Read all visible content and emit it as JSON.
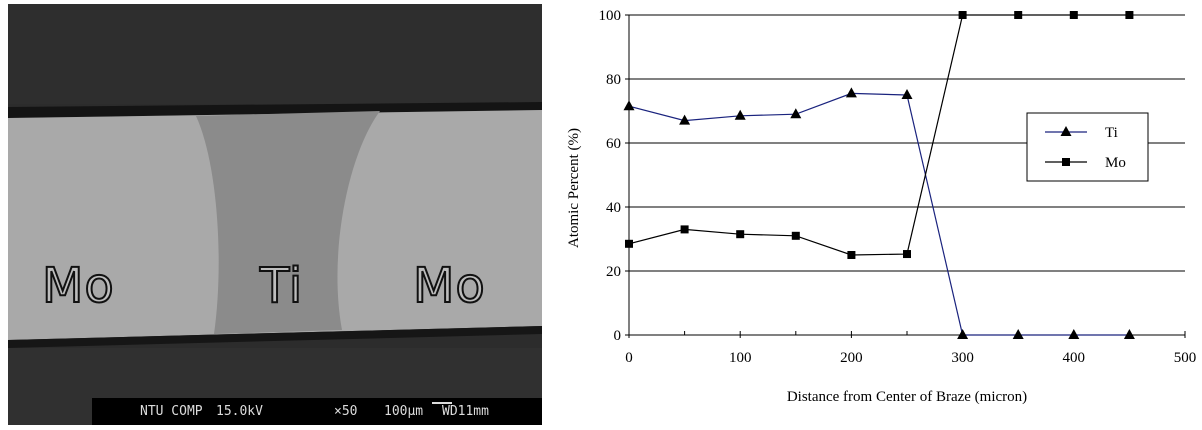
{
  "micrograph": {
    "labels": {
      "left": "Mo",
      "center": "Ti",
      "right": "Mo"
    },
    "info_bar": {
      "instrument": "NTU COMP",
      "voltage": "15.0kV",
      "magnification": "×50",
      "scale_bar": "100µm",
      "working_distance": "WD11mm"
    }
  },
  "chart_data": {
    "type": "line",
    "title": "",
    "xlabel": "Distance from Center of Braze (micron)",
    "ylabel": "Atomic Percent (%)",
    "xlim": [
      0,
      500
    ],
    "ylim": [
      0,
      100
    ],
    "xticks": [
      0,
      100,
      200,
      300,
      400,
      500
    ],
    "yticks": [
      0,
      20,
      40,
      60,
      80,
      100
    ],
    "grid": "horizontal",
    "legend_position": "right",
    "x": [
      0,
      50,
      100,
      150,
      200,
      250,
      300,
      350,
      400,
      450
    ],
    "series": [
      {
        "name": "Ti",
        "marker": "triangle",
        "color": "#1a237e",
        "values": [
          71.5,
          67,
          68.5,
          69,
          75.5,
          75,
          0,
          0,
          0,
          0
        ]
      },
      {
        "name": "Mo",
        "marker": "square",
        "color": "#000000",
        "values": [
          28.5,
          33,
          31.5,
          31,
          25,
          25.3,
          100,
          100,
          100,
          100
        ]
      }
    ]
  }
}
